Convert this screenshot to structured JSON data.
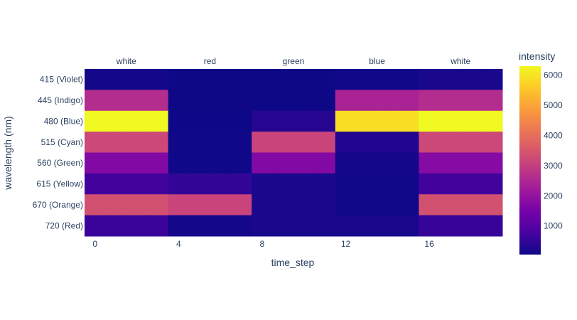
{
  "chart_data": {
    "type": "heatmap",
    "title": "",
    "xlabel": "time_step",
    "ylabel": "wavelength (nm)",
    "x_ticks": [
      0,
      4,
      8,
      12,
      16
    ],
    "x": [
      0,
      1,
      2,
      3,
      4,
      5,
      6,
      7,
      8,
      9,
      10,
      11,
      12,
      13,
      14,
      15,
      16,
      17,
      18,
      19
    ],
    "segments": [
      {
        "label": "white",
        "start": 0,
        "end": 4
      },
      {
        "label": "red",
        "start": 4,
        "end": 8
      },
      {
        "label": "green",
        "start": 8,
        "end": 12
      },
      {
        "label": "blue",
        "start": 12,
        "end": 16
      },
      {
        "label": "white",
        "start": 16,
        "end": 20
      }
    ],
    "rows": [
      {
        "label": "415 (Violet)",
        "values": [
          150,
          150,
          150,
          150,
          60,
          60,
          60,
          60,
          60,
          60,
          60,
          60,
          100,
          100,
          100,
          100,
          200,
          200,
          200,
          200
        ]
      },
      {
        "label": "445 (Indigo)",
        "values": [
          2600,
          2600,
          2600,
          2600,
          60,
          60,
          60,
          60,
          60,
          60,
          60,
          60,
          2400,
          2400,
          2400,
          2400,
          2600,
          2600,
          2600,
          2600
        ]
      },
      {
        "label": "480 (Blue)",
        "values": [
          6300,
          6300,
          6300,
          6300,
          50,
          50,
          50,
          50,
          350,
          350,
          350,
          350,
          5900,
          5900,
          5900,
          5900,
          6300,
          6300,
          6300,
          6300
        ]
      },
      {
        "label": "515 (Cyan)",
        "values": [
          3200,
          3200,
          3200,
          3200,
          80,
          80,
          80,
          80,
          3100,
          3100,
          3100,
          3100,
          300,
          300,
          300,
          300,
          3200,
          3200,
          3200,
          3200
        ]
      },
      {
        "label": "560 (Green)",
        "values": [
          1700,
          1700,
          1700,
          1700,
          80,
          80,
          80,
          80,
          1700,
          1700,
          1700,
          1700,
          150,
          150,
          150,
          150,
          1750,
          1750,
          1750,
          1750
        ]
      },
      {
        "label": "615 (Yellow)",
        "values": [
          700,
          700,
          700,
          700,
          500,
          500,
          500,
          500,
          200,
          200,
          200,
          200,
          100,
          100,
          100,
          100,
          700,
          700,
          700,
          700
        ]
      },
      {
        "label": "670 (Orange)",
        "values": [
          3400,
          3400,
          3400,
          3400,
          3100,
          3100,
          3100,
          3100,
          200,
          200,
          200,
          200,
          100,
          100,
          100,
          100,
          3400,
          3400,
          3400,
          3400
        ]
      },
      {
        "label": "720 (Red)",
        "values": [
          600,
          600,
          600,
          600,
          150,
          150,
          150,
          150,
          200,
          200,
          200,
          200,
          200,
          200,
          200,
          200,
          550,
          550,
          550,
          550
        ]
      }
    ],
    "colorbar": {
      "title": "intensity",
      "min": 50,
      "max": 6300,
      "ticks": [
        1000,
        2000,
        3000,
        4000,
        5000,
        6000
      ],
      "colorscale": [
        "#0d0887",
        "#46039f",
        "#7201a8",
        "#9c179e",
        "#bd3786",
        "#d8576b",
        "#ed7953",
        "#fb9f3a",
        "#fdca26",
        "#f0f921"
      ]
    },
    "grid": false
  }
}
